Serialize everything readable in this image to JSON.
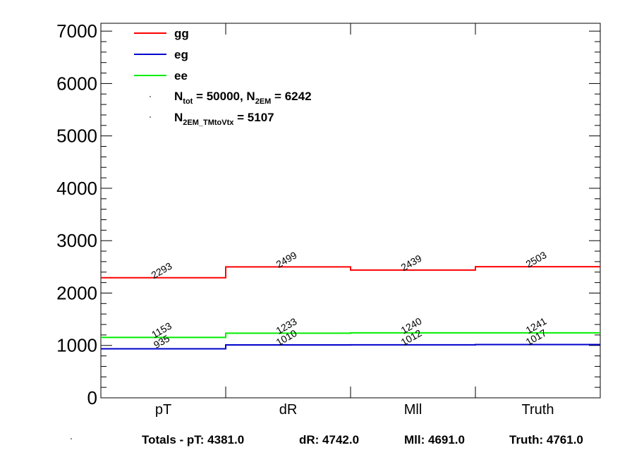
{
  "chart_data": {
    "type": "line",
    "categories": [
      "pT",
      "dR",
      "Mll",
      "Truth"
    ],
    "ylim": [
      0,
      7150
    ],
    "yticks": [
      "0",
      "1000",
      "2000",
      "3000",
      "4000",
      "5000",
      "6000",
      "7000"
    ],
    "ytick_values": [
      0,
      1000,
      2000,
      3000,
      4000,
      5000,
      6000,
      7000
    ],
    "series": [
      {
        "name": "gg",
        "color": "#ff0000",
        "values": [
          2293,
          2499,
          2439,
          2503
        ],
        "labels": [
          "2293",
          "2499",
          "2439",
          "2503"
        ]
      },
      {
        "name": "eg",
        "color": "#0000cc",
        "values": [
          935,
          1010,
          1012,
          1017
        ],
        "labels": [
          "935",
          "1010",
          "1012",
          "1017"
        ]
      },
      {
        "name": "ee",
        "color": "#00ee00",
        "values": [
          1153,
          1233,
          1240,
          1241
        ],
        "labels": [
          "1153",
          "1233",
          "1240",
          "1241"
        ]
      }
    ],
    "stats": {
      "line1_a": "N",
      "line1_a_sub": "tot",
      "line1_b": " = 50000, N",
      "line1_b_sub": "2EM",
      "line1_c": " = 6242",
      "line2_a": "N",
      "line2_a_sub": "2EM_TMtoVtx",
      "line2_c": " = 5107"
    },
    "totals": {
      "prefix": "Totals -  pT: 4381.0",
      "dR": "dR: 4742.0",
      "mll": "Mll: 4691.0",
      "truth": "Truth: 4761.0"
    }
  }
}
